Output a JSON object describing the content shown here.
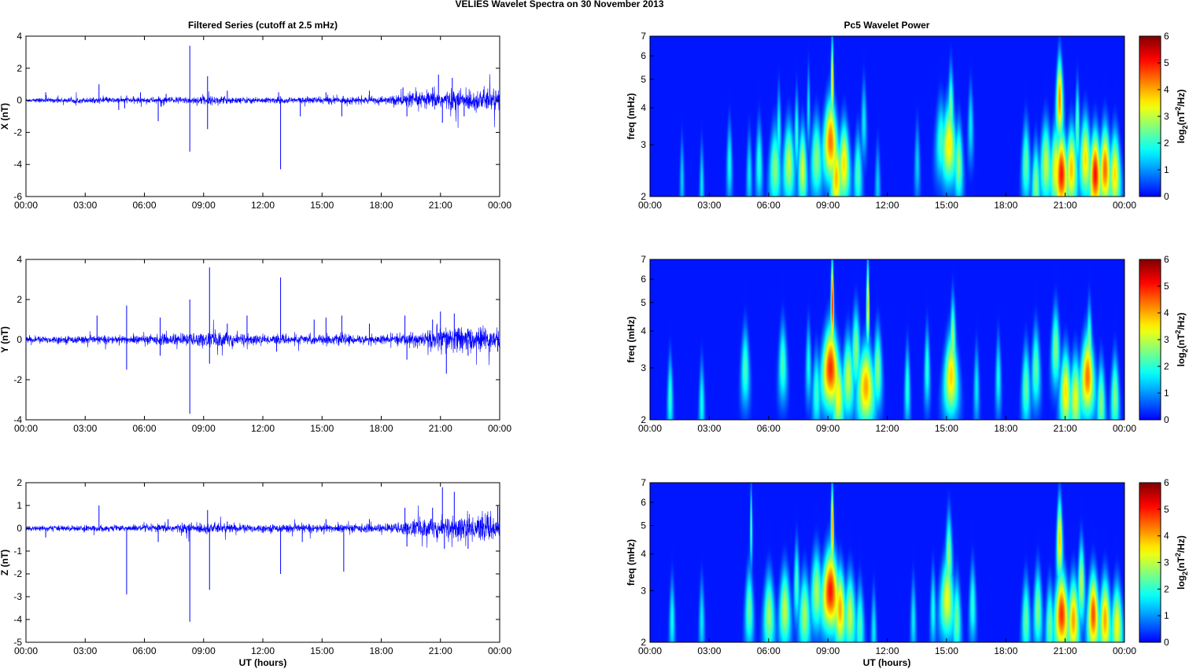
{
  "figure": {
    "title": "VELIES Wavelet Spectra on 30 November  2013",
    "left_title": "Filtered Series (cutoff at 2.5 mHz)",
    "right_title": "Pc5 Wavelet Power",
    "xlabel": "UT (hours)",
    "freq_label": "freq (mHz)",
    "colorbar_label": "log",
    "colorbar_label_sub": "2",
    "colorbar_label_rest_a": "(nT",
    "colorbar_label_sup": "2",
    "colorbar_label_rest_b": "/Hz)"
  },
  "chart_data": [
    {
      "type": "line",
      "title": "Filtered Series (cutoff at 2.5 mHz)",
      "xlabel": "",
      "ylabel": "X (nT)",
      "xlim": [
        0,
        24
      ],
      "ylim": [
        -6,
        4
      ],
      "xticks": [
        "00:00",
        "03:00",
        "06:00",
        "09:00",
        "12:00",
        "15:00",
        "18:00",
        "21:00",
        "00:00"
      ],
      "yticks": [
        -6,
        -4,
        -2,
        0,
        2,
        4
      ],
      "color": "#0000ff",
      "noise_profile": [
        [
          0,
          0.07
        ],
        [
          3,
          0.09
        ],
        [
          6,
          0.1
        ],
        [
          9,
          0.14
        ],
        [
          12,
          0.1
        ],
        [
          15,
          0.12
        ],
        [
          18,
          0.12
        ],
        [
          19,
          0.2
        ],
        [
          20.5,
          0.3
        ],
        [
          22,
          0.35
        ],
        [
          24,
          0.4
        ]
      ],
      "spikes": [
        [
          1.0,
          0.5
        ],
        [
          3.7,
          1.0
        ],
        [
          4.7,
          -0.6
        ],
        [
          5.0,
          -0.5
        ],
        [
          5.1,
          0.3
        ],
        [
          5.8,
          0.5
        ],
        [
          6.7,
          -1.3
        ],
        [
          7.1,
          0.4
        ],
        [
          8.3,
          3.4
        ],
        [
          8.3,
          -3.2
        ],
        [
          9.2,
          1.5
        ],
        [
          9.2,
          -1.8
        ],
        [
          10.2,
          0.6
        ],
        [
          12.9,
          -4.3
        ],
        [
          12.8,
          0.5
        ],
        [
          13.9,
          -1.0
        ],
        [
          15.2,
          0.5
        ],
        [
          16.0,
          -1.0
        ],
        [
          17.4,
          0.6
        ],
        [
          19.1,
          0.8
        ],
        [
          19.3,
          -1.0
        ],
        [
          20.6,
          0.8
        ],
        [
          20.9,
          1.6
        ],
        [
          21.1,
          -1.4
        ],
        [
          21.6,
          1.4
        ],
        [
          22.2,
          -1.0
        ],
        [
          23.8,
          0.6
        ]
      ]
    },
    {
      "type": "line",
      "title": "",
      "xlabel": "",
      "ylabel": "Y (nT)",
      "xlim": [
        0,
        24
      ],
      "ylim": [
        -4,
        4
      ],
      "xticks": [
        "00:00",
        "03:00",
        "06:00",
        "09:00",
        "12:00",
        "15:00",
        "18:00",
        "21:00",
        "00:00"
      ],
      "yticks": [
        -4,
        -2,
        0,
        2,
        4
      ],
      "color": "#0000ff",
      "noise_profile": [
        [
          0,
          0.1
        ],
        [
          3,
          0.1
        ],
        [
          6,
          0.12
        ],
        [
          9,
          0.2
        ],
        [
          10,
          0.25
        ],
        [
          12,
          0.12
        ],
        [
          15,
          0.14
        ],
        [
          18,
          0.12
        ],
        [
          20,
          0.2
        ],
        [
          21,
          0.35
        ],
        [
          22,
          0.35
        ],
        [
          24,
          0.3
        ]
      ],
      "spikes": [
        [
          3.6,
          1.2
        ],
        [
          5.1,
          1.7
        ],
        [
          5.1,
          -1.5
        ],
        [
          6.8,
          1.1
        ],
        [
          6.8,
          -0.8
        ],
        [
          8.3,
          2.0
        ],
        [
          8.3,
          -3.7
        ],
        [
          9.3,
          3.6
        ],
        [
          9.3,
          -1.2
        ],
        [
          10.2,
          0.8
        ],
        [
          11.2,
          1.2
        ],
        [
          12.9,
          3.1
        ],
        [
          12.7,
          -0.6
        ],
        [
          14.6,
          1.0
        ],
        [
          15.2,
          1.1
        ],
        [
          16.0,
          1.2
        ],
        [
          17.4,
          0.8
        ],
        [
          19.2,
          1.2
        ],
        [
          19.3,
          -1.0
        ],
        [
          20.6,
          1.0
        ],
        [
          21.0,
          1.4
        ],
        [
          21.3,
          -1.7
        ],
        [
          21.7,
          1.3
        ],
        [
          22.4,
          -0.8
        ],
        [
          23.9,
          -0.6
        ]
      ]
    },
    {
      "type": "line",
      "title": "",
      "xlabel": "UT (hours)",
      "ylabel": "Z (nT)",
      "xlim": [
        0,
        24
      ],
      "ylim": [
        -5,
        2
      ],
      "xticks": [
        "00:00",
        "03:00",
        "06:00",
        "09:00",
        "12:00",
        "15:00",
        "18:00",
        "21:00",
        "00:00"
      ],
      "yticks": [
        -5,
        -4,
        -3,
        -2,
        -1,
        0,
        1,
        2
      ],
      "color": "#0000ff",
      "noise_profile": [
        [
          0,
          0.06
        ],
        [
          3,
          0.07
        ],
        [
          6,
          0.08
        ],
        [
          9,
          0.13
        ],
        [
          10,
          0.12
        ],
        [
          12,
          0.09
        ],
        [
          15,
          0.1
        ],
        [
          18,
          0.1
        ],
        [
          19,
          0.15
        ],
        [
          20.5,
          0.28
        ],
        [
          22,
          0.3
        ],
        [
          24,
          0.32
        ]
      ],
      "spikes": [
        [
          1.0,
          -0.4
        ],
        [
          3.7,
          1.0
        ],
        [
          5.1,
          -2.9
        ],
        [
          6.7,
          -0.6
        ],
        [
          7.2,
          0.4
        ],
        [
          8.3,
          -4.1
        ],
        [
          9.2,
          0.8
        ],
        [
          9.3,
          -2.7
        ],
        [
          10.2,
          0.3
        ],
        [
          12.9,
          -2.0
        ],
        [
          14.0,
          -0.6
        ],
        [
          15.2,
          0.4
        ],
        [
          16.1,
          -1.9
        ],
        [
          17.4,
          0.4
        ],
        [
          19.2,
          0.9
        ],
        [
          19.3,
          -0.8
        ],
        [
          20.6,
          0.9
        ],
        [
          21.1,
          1.8
        ],
        [
          21.2,
          -0.9
        ],
        [
          21.7,
          1.6
        ],
        [
          22.4,
          -0.9
        ],
        [
          23.9,
          1.0
        ]
      ]
    },
    {
      "type": "heatmap",
      "title": "Pc5 Wavelet Power",
      "xlabel": "",
      "ylabel": "freq (mHz)",
      "xlim": [
        0,
        24
      ],
      "ylim": [
        2,
        7
      ],
      "log_y": true,
      "yticks": [
        2,
        3,
        4,
        5,
        6,
        7
      ],
      "xticks": [
        "00:00",
        "03:00",
        "06:00",
        "09:00",
        "12:00",
        "15:00",
        "18:00",
        "21:00",
        "00:00"
      ],
      "colorbar": {
        "range": [
          0,
          6
        ],
        "ticks": [
          0,
          1,
          2,
          3,
          4,
          5,
          6
        ]
      },
      "blobs": [
        [
          2.6,
          2.2,
          0.08,
          1.6
        ],
        [
          1.6,
          2.3,
          0.08,
          1.4
        ],
        [
          4.0,
          2.6,
          0.1,
          1.8
        ],
        [
          5.0,
          2.4,
          0.1,
          1.6
        ],
        [
          5.5,
          2.6,
          0.12,
          2.0
        ],
        [
          6.3,
          2.5,
          0.2,
          2.6
        ],
        [
          6.5,
          3.4,
          0.08,
          1.8
        ],
        [
          7.0,
          2.6,
          0.2,
          3.0
        ],
        [
          7.4,
          3.3,
          0.08,
          2.0
        ],
        [
          7.7,
          2.5,
          0.15,
          3.2
        ],
        [
          8.0,
          4.0,
          0.06,
          1.6
        ],
        [
          8.4,
          2.7,
          0.2,
          2.6
        ],
        [
          9.1,
          3.1,
          0.25,
          4.3
        ],
        [
          9.2,
          5.0,
          0.05,
          3.6
        ],
        [
          9.4,
          2.3,
          0.2,
          3.6
        ],
        [
          9.8,
          2.6,
          0.2,
          3.6
        ],
        [
          10.5,
          2.4,
          0.15,
          2.2
        ],
        [
          10.8,
          3.6,
          0.1,
          1.6
        ],
        [
          11.5,
          2.2,
          0.1,
          1.4
        ],
        [
          13.5,
          2.6,
          0.1,
          1.4
        ],
        [
          14.7,
          3.1,
          0.2,
          2.0
        ],
        [
          15.1,
          3.0,
          0.25,
          3.4
        ],
        [
          15.2,
          4.0,
          0.1,
          2.4
        ],
        [
          15.6,
          2.6,
          0.15,
          2.6
        ],
        [
          16.2,
          3.5,
          0.1,
          1.6
        ],
        [
          19.0,
          2.6,
          0.15,
          2.4
        ],
        [
          19.5,
          2.2,
          0.15,
          2.6
        ],
        [
          20.0,
          2.6,
          0.2,
          3.0
        ],
        [
          20.5,
          2.5,
          0.2,
          3.2
        ],
        [
          20.8,
          2.4,
          0.22,
          4.8
        ],
        [
          20.7,
          4.3,
          0.12,
          4.2
        ],
        [
          21.3,
          2.5,
          0.2,
          3.8
        ],
        [
          21.6,
          3.5,
          0.08,
          2.4
        ],
        [
          22.0,
          2.7,
          0.2,
          3.6
        ],
        [
          22.5,
          2.4,
          0.2,
          5.0
        ],
        [
          23.0,
          2.5,
          0.2,
          4.4
        ],
        [
          23.5,
          2.4,
          0.2,
          3.6
        ]
      ]
    },
    {
      "type": "heatmap",
      "title": "",
      "xlabel": "",
      "ylabel": "freq (mHz)",
      "xlim": [
        0,
        24
      ],
      "ylim": [
        2,
        7
      ],
      "log_y": true,
      "yticks": [
        2,
        3,
        4,
        5,
        6,
        7
      ],
      "xticks": [
        "00:00",
        "03:00",
        "06:00",
        "09:00",
        "12:00",
        "15:00",
        "18:00",
        "21:00",
        "00:00"
      ],
      "colorbar": {
        "range": [
          0,
          6
        ],
        "ticks": [
          0,
          1,
          2,
          3,
          4,
          5,
          6
        ]
      },
      "blobs": [
        [
          1.0,
          2.4,
          0.1,
          2.0
        ],
        [
          2.6,
          2.3,
          0.1,
          1.8
        ],
        [
          4.8,
          3.0,
          0.15,
          2.2
        ],
        [
          6.7,
          3.1,
          0.15,
          2.2
        ],
        [
          8.0,
          3.1,
          0.1,
          1.8
        ],
        [
          8.4,
          2.5,
          0.15,
          2.0
        ],
        [
          9.1,
          3.0,
          0.3,
          4.8
        ],
        [
          9.2,
          5.0,
          0.05,
          5.2
        ],
        [
          9.5,
          2.4,
          0.2,
          3.2
        ],
        [
          10.0,
          2.8,
          0.2,
          3.0
        ],
        [
          10.4,
          3.5,
          0.15,
          2.6
        ],
        [
          10.9,
          2.6,
          0.3,
          4.0
        ],
        [
          11.0,
          5.0,
          0.05,
          4.0
        ],
        [
          11.5,
          3.0,
          0.15,
          2.6
        ],
        [
          13.0,
          2.6,
          0.1,
          2.0
        ],
        [
          14.0,
          3.0,
          0.1,
          2.0
        ],
        [
          15.2,
          2.8,
          0.25,
          3.6
        ],
        [
          15.3,
          3.8,
          0.1,
          2.6
        ],
        [
          16.5,
          2.6,
          0.1,
          1.6
        ],
        [
          17.6,
          2.8,
          0.1,
          1.8
        ],
        [
          19.0,
          2.6,
          0.15,
          2.4
        ],
        [
          19.5,
          3.0,
          0.15,
          2.4
        ],
        [
          20.5,
          3.5,
          0.15,
          2.6
        ],
        [
          21.0,
          2.5,
          0.2,
          3.6
        ],
        [
          21.5,
          2.4,
          0.2,
          3.2
        ],
        [
          22.1,
          2.8,
          0.25,
          4.2
        ],
        [
          22.2,
          3.6,
          0.1,
          2.4
        ],
        [
          22.8,
          2.3,
          0.15,
          2.6
        ],
        [
          23.5,
          2.4,
          0.15,
          2.6
        ]
      ]
    },
    {
      "type": "heatmap",
      "title": "",
      "xlabel": "UT (hours)",
      "ylabel": "freq (mHz)",
      "xlim": [
        0,
        24
      ],
      "ylim": [
        2,
        7
      ],
      "log_y": true,
      "yticks": [
        2,
        3,
        4,
        5,
        6,
        7
      ],
      "xticks": [
        "00:00",
        "03:00",
        "06:00",
        "09:00",
        "12:00",
        "15:00",
        "18:00",
        "21:00",
        "00:00"
      ],
      "colorbar": {
        "range": [
          0,
          6
        ],
        "ticks": [
          0,
          1,
          2,
          3,
          4,
          5,
          6
        ]
      },
      "blobs": [
        [
          1.1,
          2.4,
          0.1,
          1.8
        ],
        [
          2.6,
          2.4,
          0.1,
          1.6
        ],
        [
          5.0,
          2.6,
          0.15,
          2.4
        ],
        [
          5.1,
          5.0,
          0.04,
          2.4
        ],
        [
          6.0,
          2.5,
          0.2,
          2.8
        ],
        [
          6.8,
          2.6,
          0.2,
          3.0
        ],
        [
          7.4,
          3.2,
          0.1,
          2.2
        ],
        [
          7.8,
          2.5,
          0.2,
          2.8
        ],
        [
          8.4,
          3.0,
          0.2,
          2.8
        ],
        [
          9.1,
          3.0,
          0.3,
          5.0
        ],
        [
          9.2,
          5.0,
          0.05,
          4.2
        ],
        [
          9.6,
          2.6,
          0.2,
          3.8
        ],
        [
          10.1,
          2.5,
          0.2,
          3.0
        ],
        [
          10.6,
          2.3,
          0.15,
          2.2
        ],
        [
          11.3,
          2.2,
          0.1,
          1.6
        ],
        [
          13.3,
          2.4,
          0.1,
          1.6
        ],
        [
          14.3,
          2.6,
          0.1,
          1.8
        ],
        [
          15.0,
          2.8,
          0.25,
          3.2
        ],
        [
          15.1,
          4.0,
          0.12,
          2.6
        ],
        [
          15.5,
          2.4,
          0.15,
          2.4
        ],
        [
          16.3,
          2.7,
          0.12,
          2.0
        ],
        [
          19.0,
          2.4,
          0.15,
          2.4
        ],
        [
          19.6,
          2.6,
          0.15,
          2.6
        ],
        [
          20.2,
          2.3,
          0.15,
          2.4
        ],
        [
          20.8,
          2.5,
          0.25,
          4.8
        ],
        [
          20.7,
          4.5,
          0.1,
          3.8
        ],
        [
          21.4,
          2.4,
          0.2,
          4.0
        ],
        [
          21.8,
          3.2,
          0.12,
          3.0
        ],
        [
          22.4,
          2.5,
          0.2,
          4.6
        ],
        [
          23.0,
          2.4,
          0.2,
          4.0
        ],
        [
          23.6,
          2.3,
          0.2,
          3.4
        ]
      ]
    }
  ]
}
